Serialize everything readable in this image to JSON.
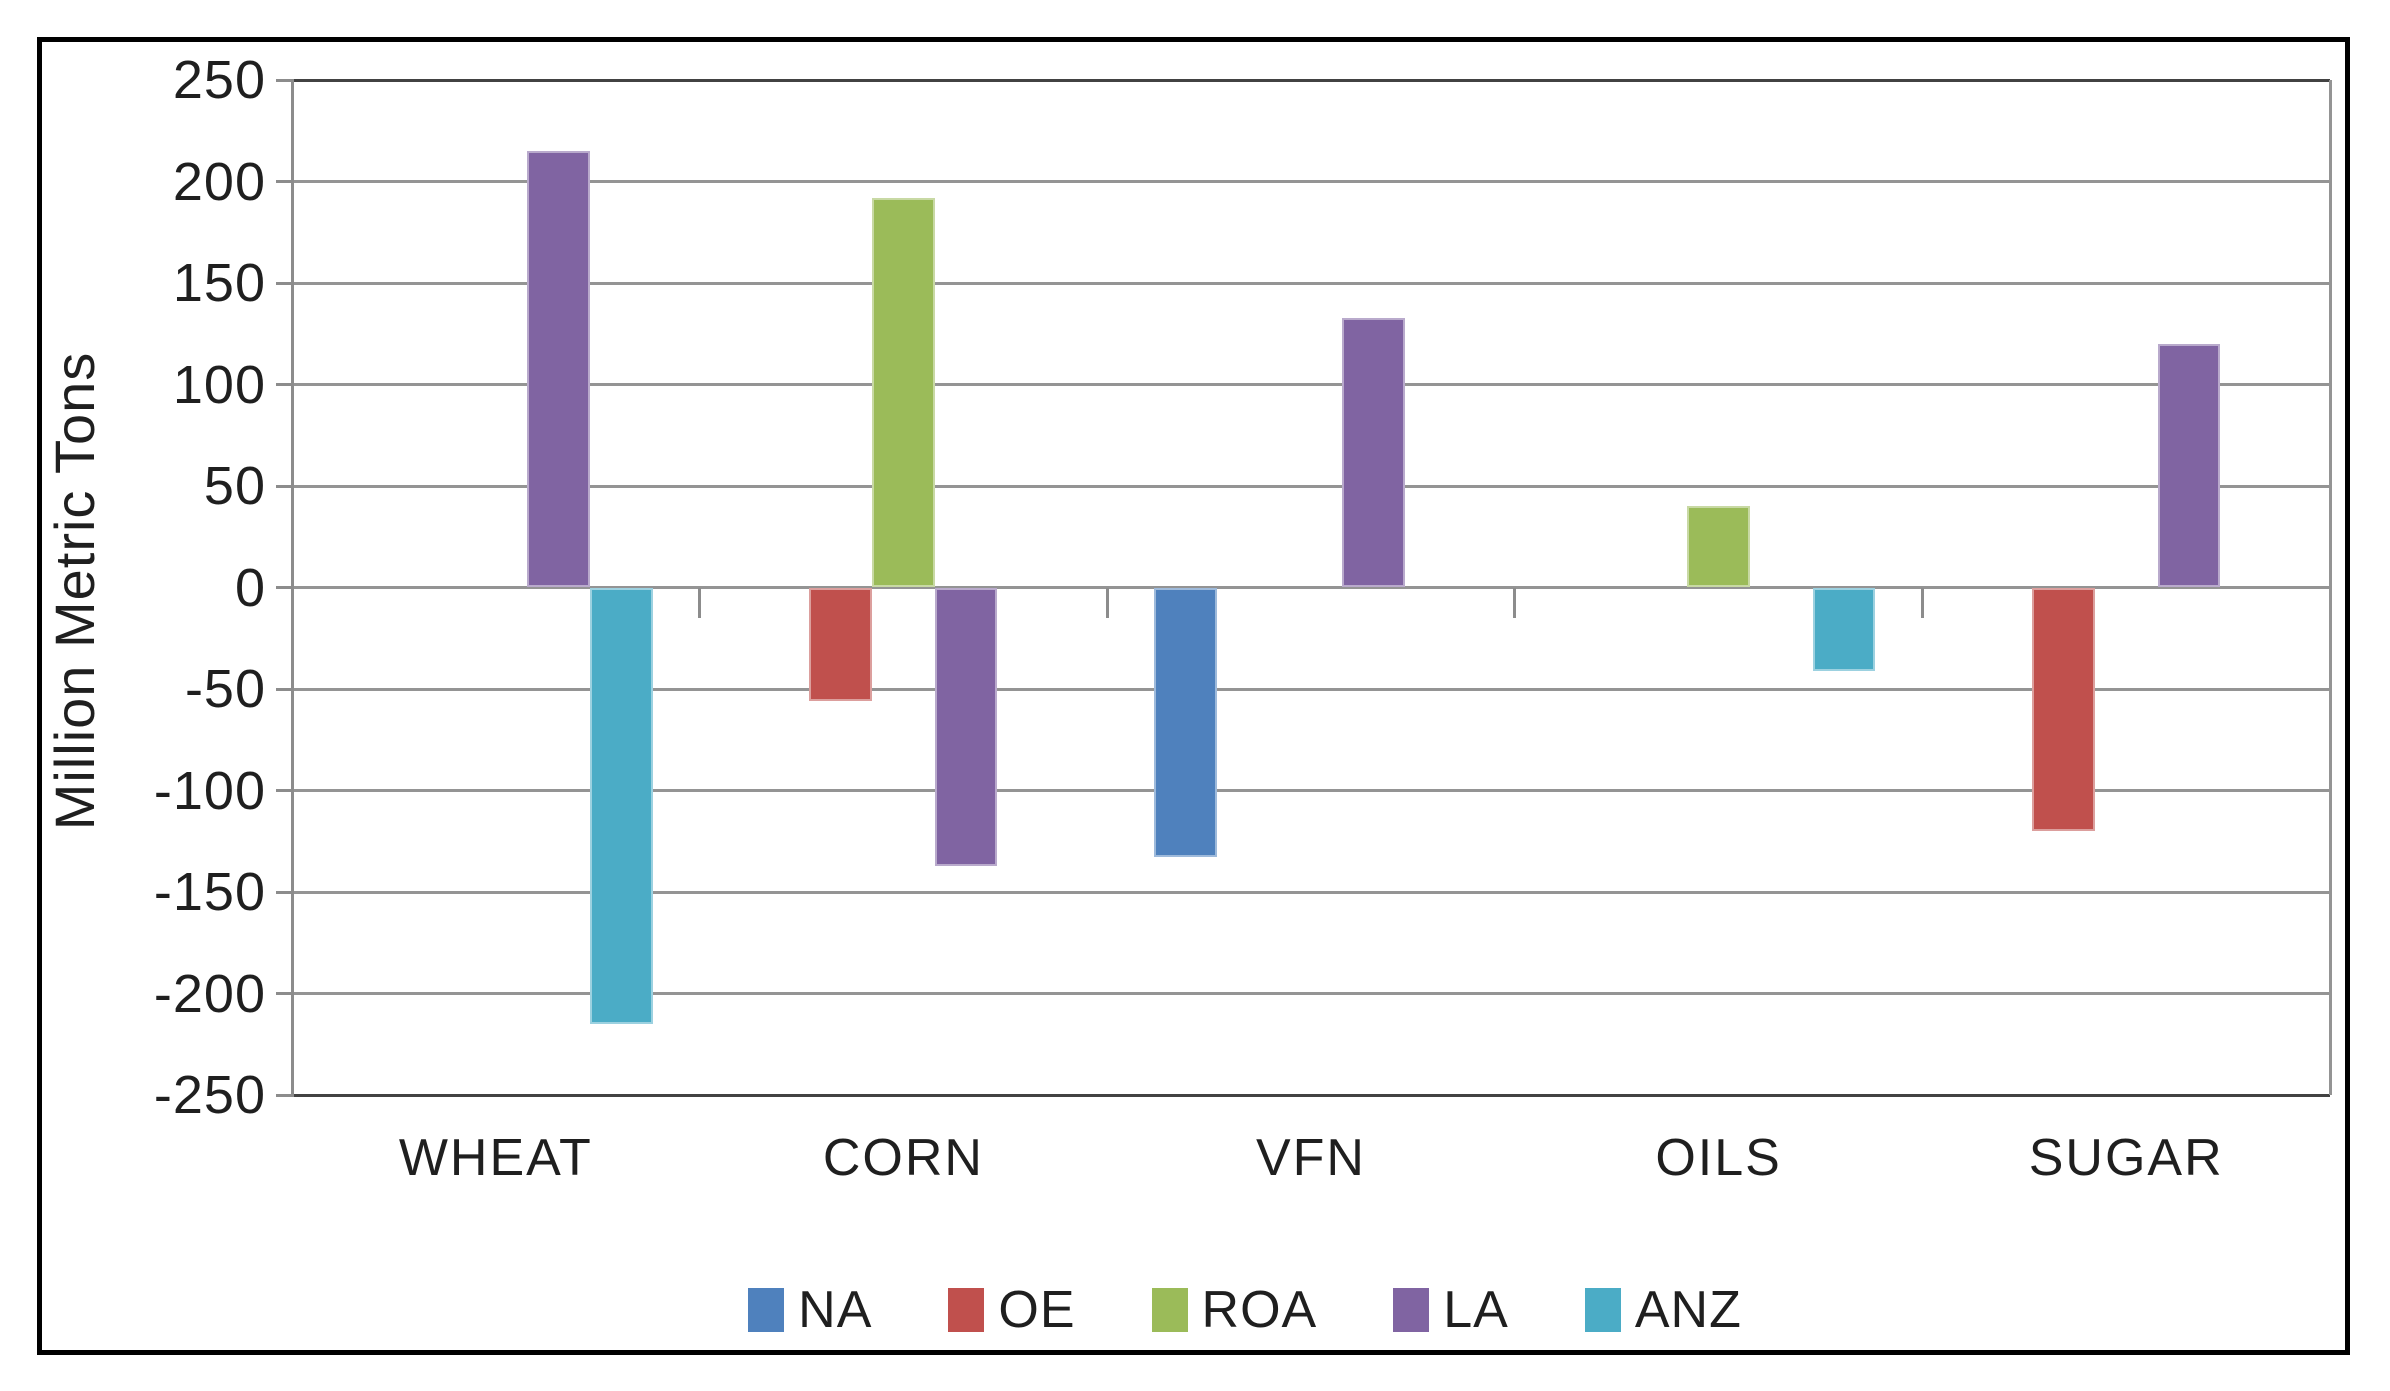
{
  "chart_data": {
    "type": "bar",
    "title": "",
    "ylabel": "Million Metric Tons",
    "categories": [
      "WHEAT",
      "CORN",
      "VFN",
      "OILS",
      "SUGAR"
    ],
    "series": [
      {
        "name": "NA",
        "color": "#4F81BD",
        "values": [
          0,
          0,
          -133,
          0,
          0
        ]
      },
      {
        "name": "OE",
        "color": "#C0504D",
        "values": [
          0,
          -56,
          0,
          0,
          -120
        ]
      },
      {
        "name": "ROA",
        "color": "#9BBB59",
        "values": [
          0,
          192,
          0,
          40,
          0
        ]
      },
      {
        "name": "LA",
        "color": "#8064A2",
        "values": [
          215,
          -137,
          133,
          0,
          120
        ]
      },
      {
        "name": "ANZ",
        "color": "#4BACC6",
        "values": [
          -215,
          0,
          0,
          -41,
          0
        ]
      }
    ],
    "ylim": [
      -250,
      250
    ],
    "ytick_step": 50,
    "ytick_labels": [
      "250",
      "200",
      "150",
      "100",
      "50",
      "0",
      "-50",
      "-100",
      "-150",
      "-200",
      "-250"
    ],
    "grid": true,
    "legend_position": "bottom",
    "grid_color": "#949494",
    "plot_edge_color": "#424242",
    "axis_color": "#8C8C8C",
    "outer_border_color": "#000000"
  }
}
